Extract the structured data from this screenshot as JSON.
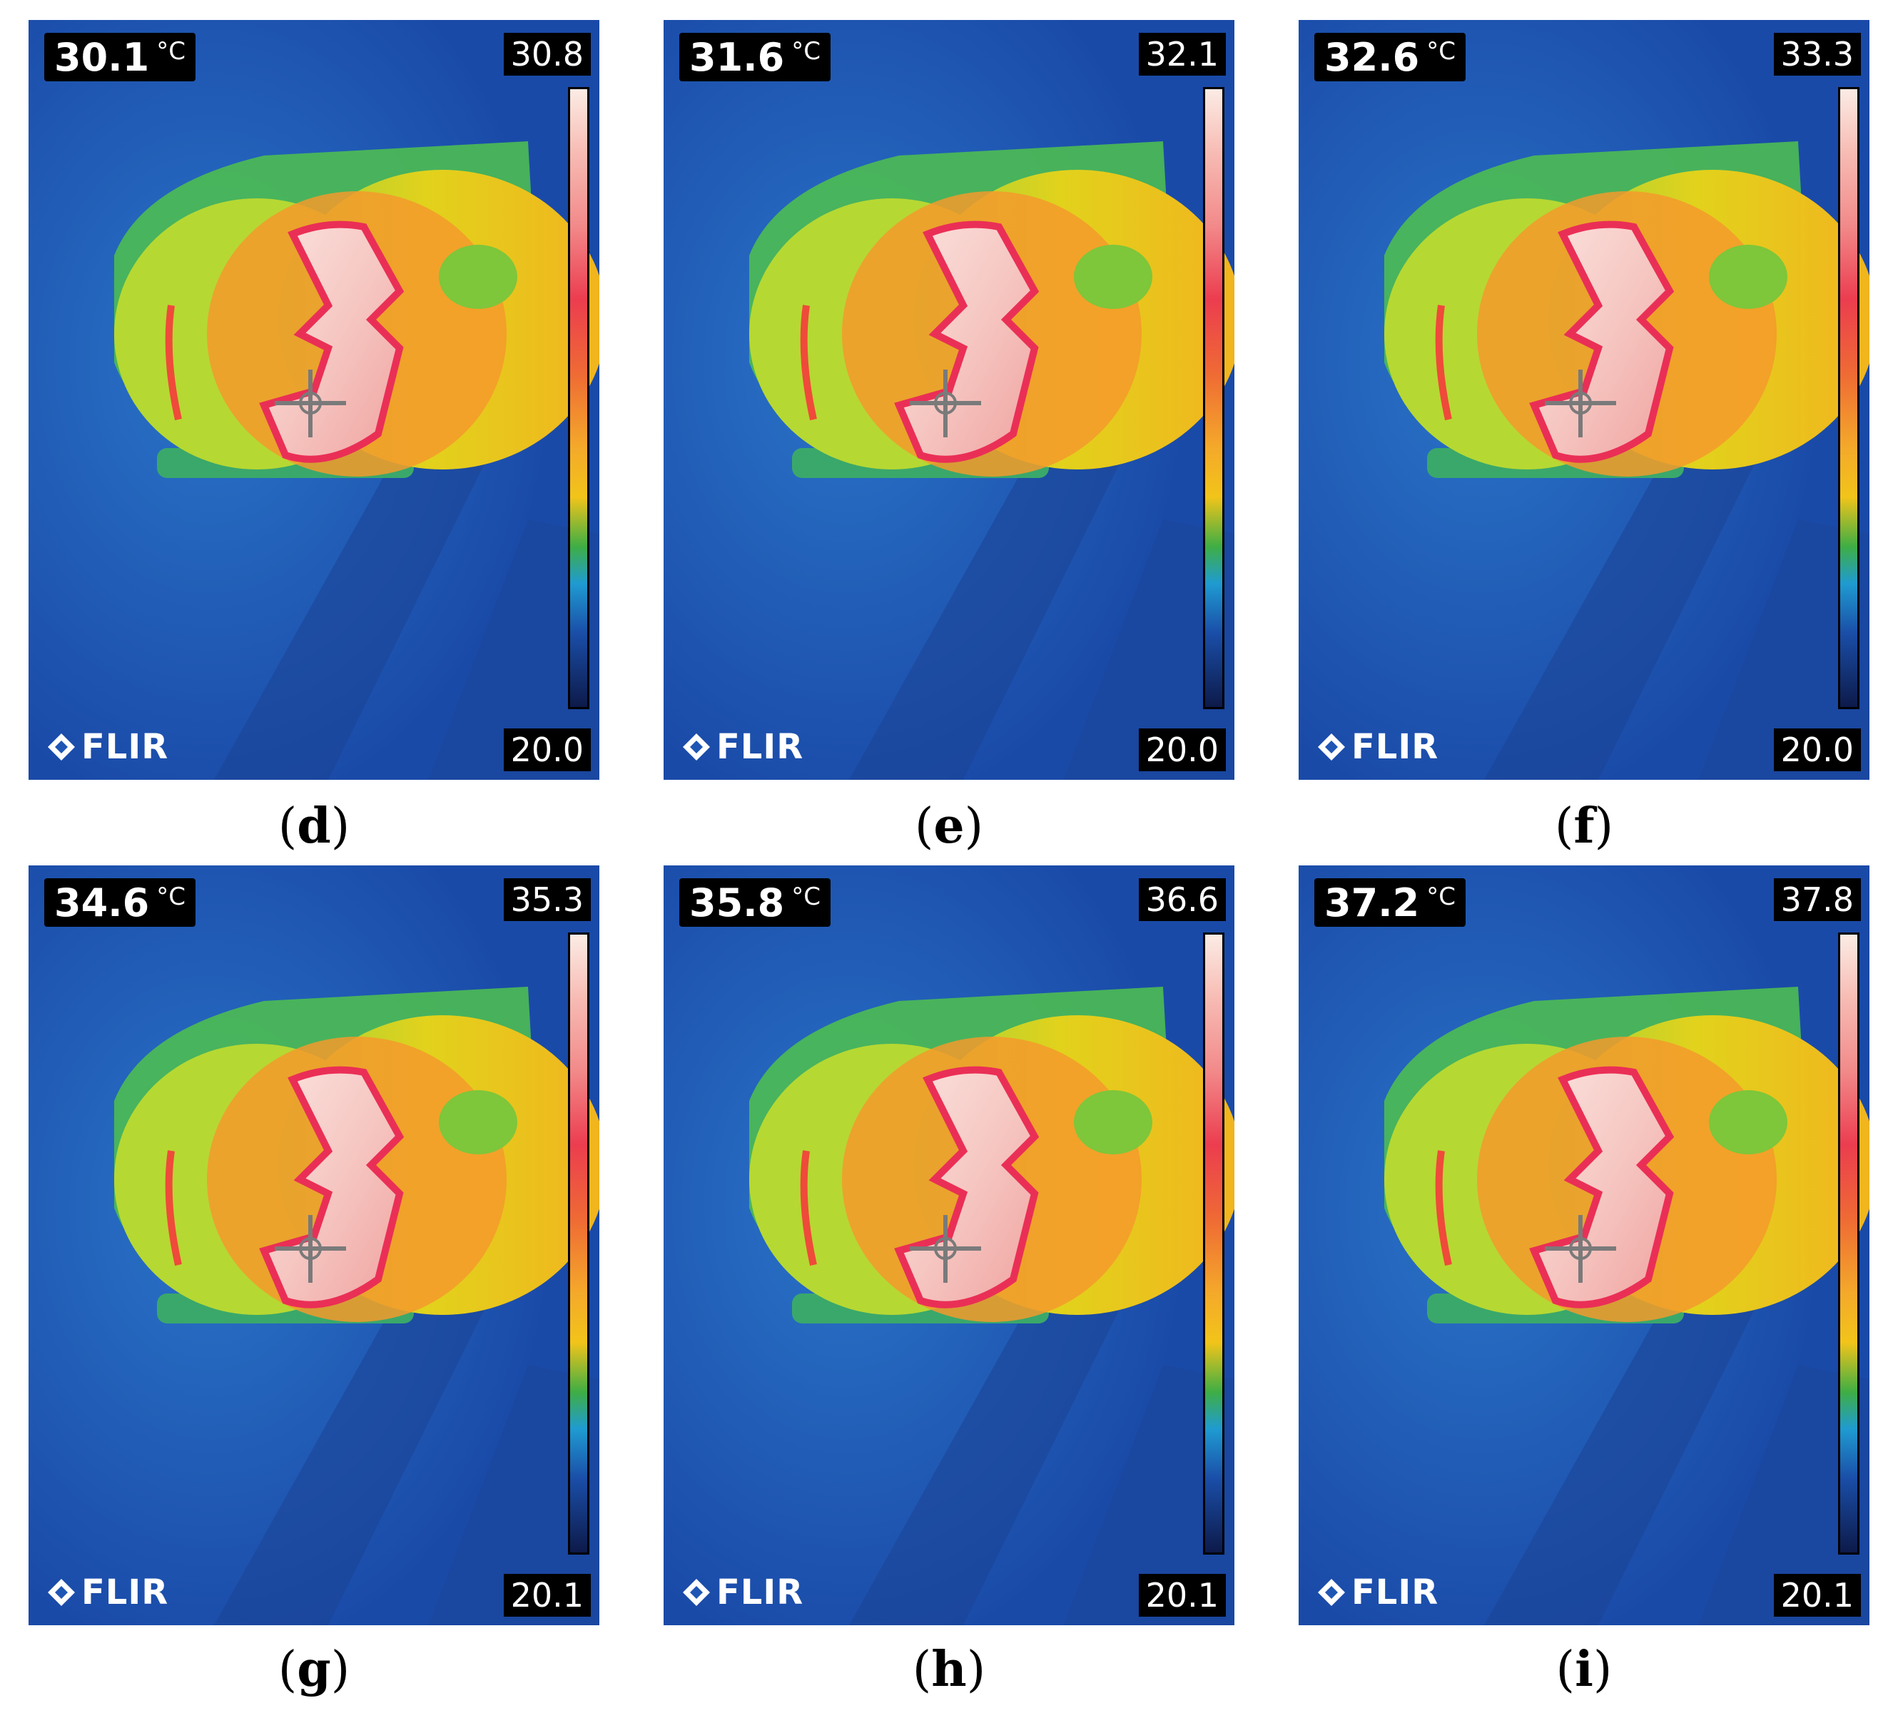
{
  "panels": [
    {
      "label": "d",
      "spot_temp": "30.1",
      "unit": "°C",
      "scale_max": "30.8",
      "scale_min": "20.0",
      "brand": "FLIR"
    },
    {
      "label": "e",
      "spot_temp": "31.6",
      "unit": "°C",
      "scale_max": "32.1",
      "scale_min": "20.0",
      "brand": "FLIR"
    },
    {
      "label": "f",
      "spot_temp": "32.6",
      "unit": "°C",
      "scale_max": "33.3",
      "scale_min": "20.0",
      "brand": "FLIR"
    },
    {
      "label": "g",
      "spot_temp": "34.6",
      "unit": "°C",
      "scale_max": "35.3",
      "scale_min": "20.1",
      "brand": "FLIR"
    },
    {
      "label": "h",
      "spot_temp": "35.8",
      "unit": "°C",
      "scale_max": "36.6",
      "scale_min": "20.1",
      "brand": "FLIR"
    },
    {
      "label": "i",
      "spot_temp": "37.2",
      "unit": "°C",
      "scale_max": "37.8",
      "scale_min": "20.1",
      "brand": "FLIR"
    }
  ],
  "colors": {
    "background": "#1f56b4",
    "cold": "#0d1a4a",
    "green": "#3fae44",
    "yellow": "#f2c41a",
    "orange": "#ef6a34",
    "red": "#ec3d4f",
    "hot": "#fbece5"
  },
  "icons": {
    "logo": "flir-diamond-icon",
    "crosshair": "spot-crosshair-icon"
  }
}
